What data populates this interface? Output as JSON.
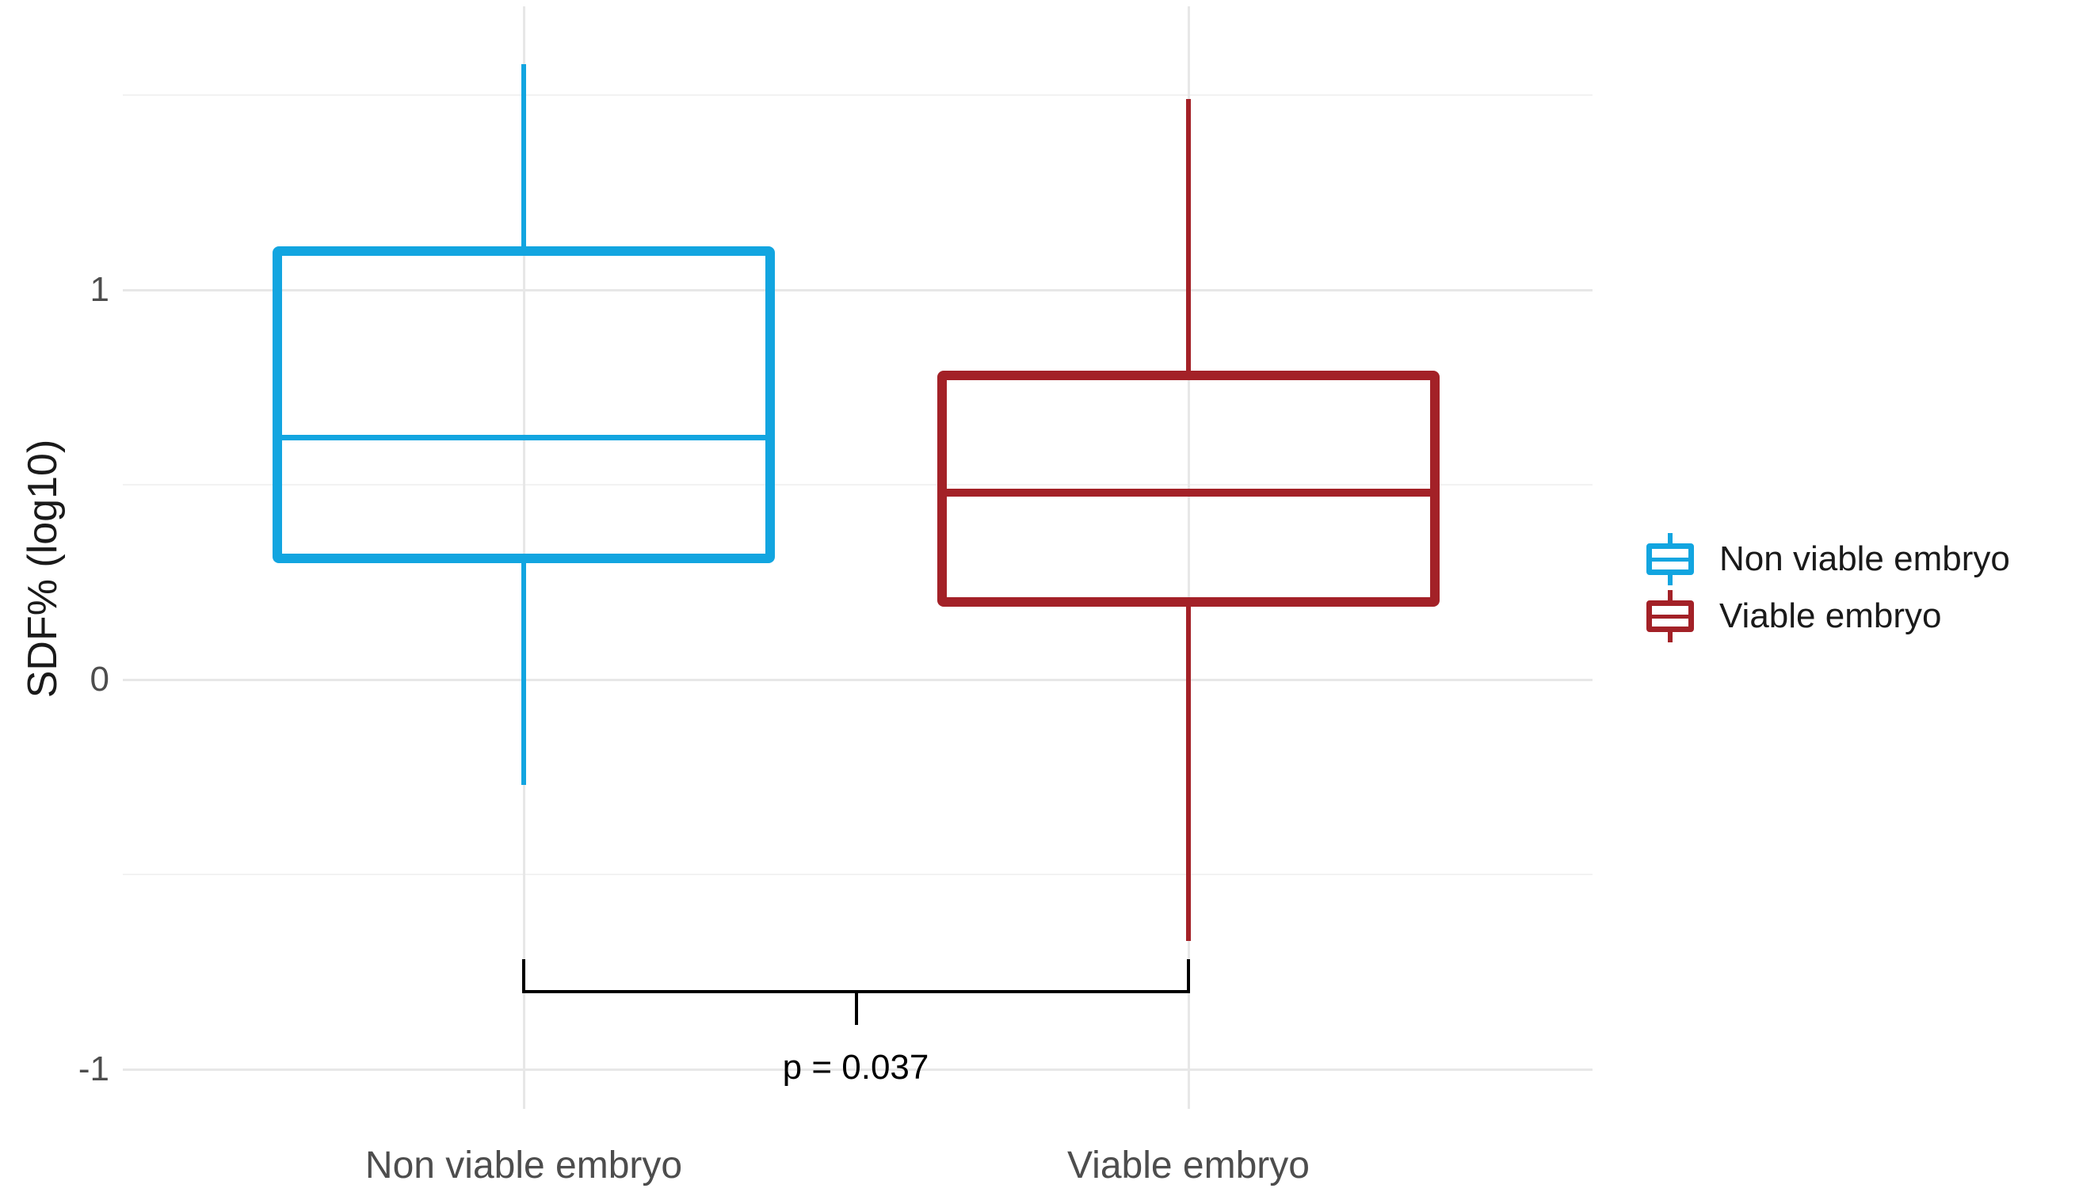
{
  "chart_data": {
    "type": "boxplot",
    "title": "",
    "y_label": "SDF% (log10)",
    "categories": [
      "Non viable embryo",
      "Viable embryo"
    ],
    "series": [
      {
        "name": "Non viable embryo",
        "color": "#12a5e0",
        "whisker_low": -0.27,
        "q1": 0.31,
        "median": 0.62,
        "q3": 1.1,
        "whisker_high": 1.58
      },
      {
        "name": "Viable embryo",
        "color": "#a32127",
        "whisker_low": -0.67,
        "q1": 0.2,
        "median": 0.48,
        "q3": 0.78,
        "whisker_high": 1.49
      }
    ],
    "y_axis": {
      "major_ticks": [
        {
          "label": "1",
          "value": 1
        },
        {
          "label": "0",
          "value": 0
        },
        {
          "label": "-1",
          "value": -1
        }
      ],
      "minor_tick_values": [
        1.5,
        0.5,
        -0.5
      ],
      "range": [
        -1.1,
        1.73
      ]
    },
    "annotation": {
      "label": "p = 0.037",
      "connects": [
        "Non viable embryo",
        "Viable embryo"
      ]
    },
    "legend": {
      "position": "right",
      "entries": [
        {
          "label": "Non viable embryo",
          "color": "#12a5e0"
        },
        {
          "label": "Viable embryo",
          "color": "#a32127"
        }
      ]
    },
    "grid": true,
    "colors": {
      "background": "#ffffff",
      "grid_major": "#e7e7e7",
      "grid_minor": "#f2f2f2",
      "axis_text": "#4d4d4d",
      "title_text": "#1a1a1a",
      "annotation": "#000000"
    }
  }
}
